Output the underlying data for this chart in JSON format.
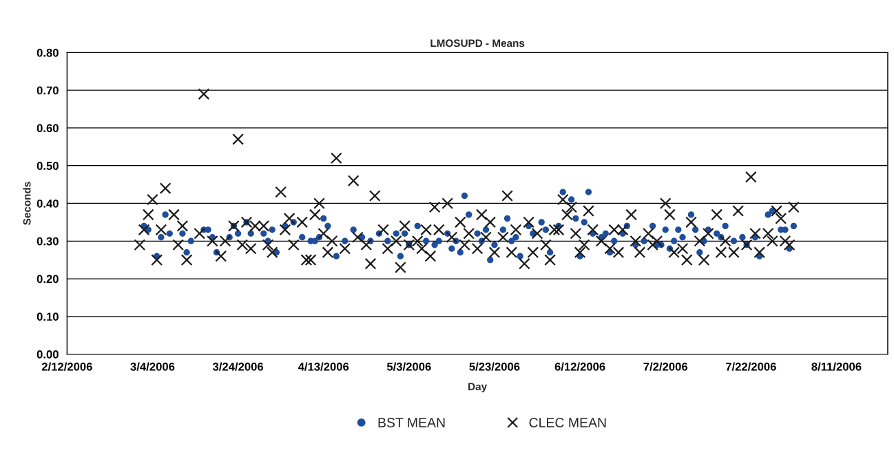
{
  "chart_data": {
    "type": "scatter",
    "title": "LMOSUPD - Means",
    "xlabel": "Day",
    "ylabel": "Seconds",
    "xlim": [
      "2006-02-12",
      "2006-08-23"
    ],
    "xticks": [
      {
        "value": "2006-02-12",
        "label": "2/12/2006"
      },
      {
        "value": "2006-03-04",
        "label": "3/4/2006"
      },
      {
        "value": "2006-03-24",
        "label": "3/24/2006"
      },
      {
        "value": "2006-04-13",
        "label": "4/13/2006"
      },
      {
        "value": "2006-05-03",
        "label": "5/3/2006"
      },
      {
        "value": "2006-05-23",
        "label": "5/23/2006"
      },
      {
        "value": "2006-06-12",
        "label": "6/12/2006"
      },
      {
        "value": "2006-07-02",
        "label": "7/2/2006"
      },
      {
        "value": "2006-07-22",
        "label": "7/22/2006"
      },
      {
        "value": "2006-08-11",
        "label": "8/11/2006"
      }
    ],
    "ylim": [
      0,
      0.8
    ],
    "yticks": [
      {
        "value": 0,
        "label": "0.00"
      },
      {
        "value": 0.1,
        "label": "0.10"
      },
      {
        "value": 0.2,
        "label": "0.20"
      },
      {
        "value": 0.3,
        "label": "0.30"
      },
      {
        "value": 0.4,
        "label": "0.40"
      },
      {
        "value": 0.5,
        "label": "0.50"
      },
      {
        "value": 0.6,
        "label": "0.60"
      },
      {
        "value": 0.7,
        "label": "0.70"
      },
      {
        "value": 0.8,
        "label": "0.80"
      }
    ],
    "grid": "y",
    "legend": "bottom",
    "series": [
      {
        "name": "BST MEAN",
        "color": "#1f4e9c",
        "marker": "circle",
        "x": [
          "2006-03-02",
          "2006-03-03",
          "2006-03-05",
          "2006-03-06",
          "2006-03-07",
          "2006-03-08",
          "2006-03-11",
          "2006-03-12",
          "2006-03-13",
          "2006-03-16",
          "2006-03-17",
          "2006-03-18",
          "2006-03-19",
          "2006-03-22",
          "2006-03-23",
          "2006-03-24",
          "2006-03-26",
          "2006-03-27",
          "2006-03-30",
          "2006-03-31",
          "2006-04-01",
          "2006-04-02",
          "2006-04-04",
          "2006-04-06",
          "2006-04-08",
          "2006-04-10",
          "2006-04-11",
          "2006-04-12",
          "2006-04-13",
          "2006-04-14",
          "2006-04-16",
          "2006-04-18",
          "2006-04-20",
          "2006-04-22",
          "2006-04-24",
          "2006-04-26",
          "2006-04-28",
          "2006-04-30",
          "2006-05-01",
          "2006-05-02",
          "2006-05-03",
          "2006-05-05",
          "2006-05-07",
          "2006-05-09",
          "2006-05-10",
          "2006-05-12",
          "2006-05-13",
          "2006-05-14",
          "2006-05-15",
          "2006-05-16",
          "2006-05-17",
          "2006-05-19",
          "2006-05-20",
          "2006-05-21",
          "2006-05-22",
          "2006-05-23",
          "2006-05-25",
          "2006-05-26",
          "2006-05-27",
          "2006-05-28",
          "2006-05-29",
          "2006-05-31",
          "2006-06-01",
          "2006-06-03",
          "2006-06-04",
          "2006-06-05",
          "2006-06-07",
          "2006-06-08",
          "2006-06-10",
          "2006-06-11",
          "2006-06-12",
          "2006-06-13",
          "2006-06-14",
          "2006-06-15",
          "2006-06-17",
          "2006-06-18",
          "2006-06-19",
          "2006-06-20",
          "2006-06-22",
          "2006-06-23",
          "2006-06-25",
          "2006-06-27",
          "2006-06-29",
          "2006-06-30",
          "2006-07-01",
          "2006-07-02",
          "2006-07-03",
          "2006-07-04",
          "2006-07-05",
          "2006-07-06",
          "2006-07-08",
          "2006-07-09",
          "2006-07-10",
          "2006-07-11",
          "2006-07-12",
          "2006-07-14",
          "2006-07-15",
          "2006-07-16",
          "2006-07-18",
          "2006-07-20",
          "2006-07-21",
          "2006-07-23",
          "2006-07-24",
          "2006-07-26",
          "2006-07-27",
          "2006-07-29",
          "2006-07-30",
          "2006-07-31",
          "2006-08-01"
        ],
        "values": [
          0.34,
          0.33,
          0.26,
          0.31,
          0.37,
          0.32,
          0.32,
          0.27,
          0.3,
          0.33,
          0.33,
          0.31,
          0.27,
          0.31,
          0.34,
          0.32,
          0.35,
          0.32,
          0.32,
          0.3,
          0.33,
          0.27,
          0.34,
          0.35,
          0.31,
          0.3,
          0.3,
          0.31,
          0.36,
          0.34,
          0.26,
          0.3,
          0.33,
          0.31,
          0.3,
          0.32,
          0.3,
          0.32,
          0.26,
          0.32,
          0.29,
          0.34,
          0.3,
          0.29,
          0.3,
          0.32,
          0.28,
          0.3,
          0.27,
          0.42,
          0.37,
          0.32,
          0.3,
          0.33,
          0.25,
          0.29,
          0.33,
          0.36,
          0.3,
          0.31,
          0.26,
          0.34,
          0.32,
          0.35,
          0.33,
          0.27,
          0.34,
          0.43,
          0.41,
          0.36,
          0.26,
          0.35,
          0.43,
          0.32,
          0.31,
          0.32,
          0.27,
          0.3,
          0.32,
          0.34,
          0.29,
          0.3,
          0.34,
          0.29,
          0.29,
          0.33,
          0.28,
          0.3,
          0.33,
          0.31,
          0.37,
          0.33,
          0.27,
          0.3,
          0.33,
          0.32,
          0.31,
          0.34,
          0.3,
          0.31,
          0.29,
          0.31,
          0.26,
          0.37,
          0.38,
          0.33,
          0.33,
          0.28,
          0.34
        ]
      },
      {
        "name": "CLEC MEAN",
        "color": "#1a1a1a",
        "marker": "cross",
        "x": [
          "2006-03-01",
          "2006-03-02",
          "2006-03-03",
          "2006-03-04",
          "2006-03-05",
          "2006-03-06",
          "2006-03-07",
          "2006-03-09",
          "2006-03-10",
          "2006-03-11",
          "2006-03-12",
          "2006-03-15",
          "2006-03-16",
          "2006-03-18",
          "2006-03-20",
          "2006-03-21",
          "2006-03-23",
          "2006-03-24",
          "2006-03-25",
          "2006-03-26",
          "2006-03-27",
          "2006-03-28",
          "2006-03-30",
          "2006-03-31",
          "2006-04-01",
          "2006-04-03",
          "2006-04-04",
          "2006-04-05",
          "2006-04-06",
          "2006-04-08",
          "2006-04-09",
          "2006-04-10",
          "2006-04-11",
          "2006-04-12",
          "2006-04-13",
          "2006-04-14",
          "2006-04-15",
          "2006-04-16",
          "2006-04-18",
          "2006-04-20",
          "2006-04-21",
          "2006-04-23",
          "2006-04-24",
          "2006-04-25",
          "2006-04-27",
          "2006-04-28",
          "2006-04-30",
          "2006-05-01",
          "2006-05-02",
          "2006-05-03",
          "2006-05-05",
          "2006-05-06",
          "2006-05-07",
          "2006-05-08",
          "2006-05-09",
          "2006-05-10",
          "2006-05-12",
          "2006-05-13",
          "2006-05-15",
          "2006-05-16",
          "2006-05-17",
          "2006-05-19",
          "2006-05-20",
          "2006-05-21",
          "2006-05-22",
          "2006-05-23",
          "2006-05-25",
          "2006-05-26",
          "2006-05-27",
          "2006-05-28",
          "2006-05-30",
          "2006-05-31",
          "2006-06-01",
          "2006-06-02",
          "2006-06-04",
          "2006-06-05",
          "2006-06-06",
          "2006-06-07",
          "2006-06-08",
          "2006-06-09",
          "2006-06-10",
          "2006-06-11",
          "2006-06-12",
          "2006-06-13",
          "2006-06-14",
          "2006-06-15",
          "2006-06-17",
          "2006-06-19",
          "2006-06-20",
          "2006-06-21",
          "2006-06-22",
          "2006-06-24",
          "2006-06-25",
          "2006-06-26",
          "2006-06-28",
          "2006-06-29",
          "2006-06-30",
          "2006-07-02",
          "2006-07-03",
          "2006-07-04",
          "2006-07-06",
          "2006-07-07",
          "2006-07-08",
          "2006-07-10",
          "2006-07-11",
          "2006-07-12",
          "2006-07-14",
          "2006-07-15",
          "2006-07-16",
          "2006-07-18",
          "2006-07-19",
          "2006-07-21",
          "2006-07-22",
          "2006-07-23",
          "2006-07-24",
          "2006-07-26",
          "2006-07-27",
          "2006-07-28",
          "2006-07-29",
          "2006-07-30",
          "2006-07-31",
          "2006-08-01"
        ],
        "values": [
          0.29,
          0.33,
          0.37,
          0.41,
          0.25,
          0.33,
          0.44,
          0.37,
          0.29,
          0.34,
          0.25,
          0.32,
          0.69,
          0.3,
          0.26,
          0.3,
          0.34,
          0.57,
          0.29,
          0.35,
          0.28,
          0.34,
          0.34,
          0.29,
          0.27,
          0.43,
          0.33,
          0.36,
          0.29,
          0.35,
          0.25,
          0.25,
          0.37,
          0.4,
          0.32,
          0.27,
          0.3,
          0.52,
          0.28,
          0.46,
          0.31,
          0.29,
          0.24,
          0.42,
          0.33,
          0.28,
          0.3,
          0.23,
          0.34,
          0.29,
          0.3,
          0.28,
          0.33,
          0.26,
          0.39,
          0.33,
          0.4,
          0.31,
          0.35,
          0.29,
          0.32,
          0.28,
          0.37,
          0.31,
          0.35,
          0.27,
          0.31,
          0.42,
          0.27,
          0.33,
          0.24,
          0.35,
          0.27,
          0.32,
          0.29,
          0.25,
          0.33,
          0.33,
          0.41,
          0.37,
          0.39,
          0.32,
          0.27,
          0.29,
          0.38,
          0.33,
          0.3,
          0.28,
          0.33,
          0.27,
          0.33,
          0.37,
          0.3,
          0.27,
          0.32,
          0.29,
          0.3,
          0.4,
          0.37,
          0.27,
          0.28,
          0.25,
          0.35,
          0.3,
          0.25,
          0.32,
          0.37,
          0.27,
          0.3,
          0.27,
          0.38,
          0.29,
          0.47,
          0.32,
          0.27,
          0.32,
          0.3,
          0.38,
          0.36,
          0.3,
          0.29,
          0.39
        ]
      }
    ]
  }
}
